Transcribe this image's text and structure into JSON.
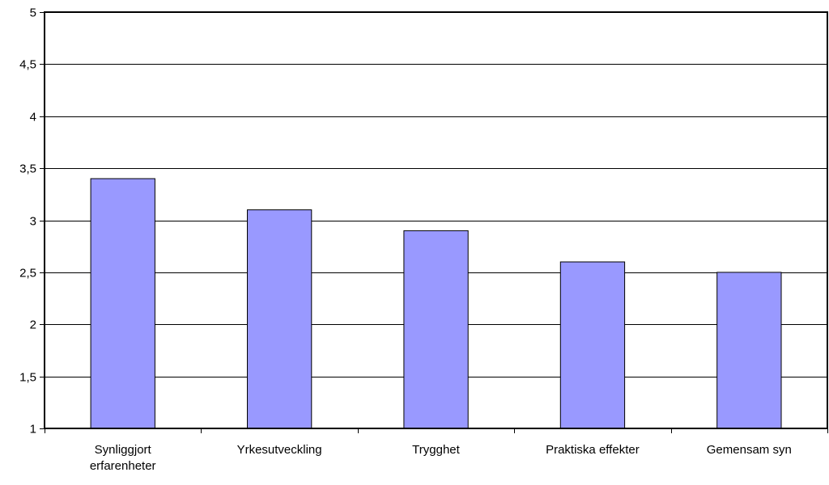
{
  "chart_data": {
    "type": "bar",
    "categories": [
      [
        "Synliggjort",
        "erfarenheter"
      ],
      [
        "Yrkesutveckling"
      ],
      [
        "Trygghet"
      ],
      [
        "Praktiska effekter"
      ],
      [
        "Gemensam syn"
      ]
    ],
    "values": [
      3.4,
      3.1,
      2.9,
      2.6,
      2.5
    ],
    "ylim": [
      1,
      5
    ],
    "yticks": [
      "1",
      "1,5",
      "2",
      "2,5",
      "3",
      "3,5",
      "4",
      "4,5",
      "5"
    ],
    "ytick_values": [
      1,
      1.5,
      2,
      2.5,
      3,
      3.5,
      4,
      4.5,
      5
    ],
    "grid": true,
    "bar_color": "#9999ff",
    "bar_edge_color": "#000000"
  }
}
